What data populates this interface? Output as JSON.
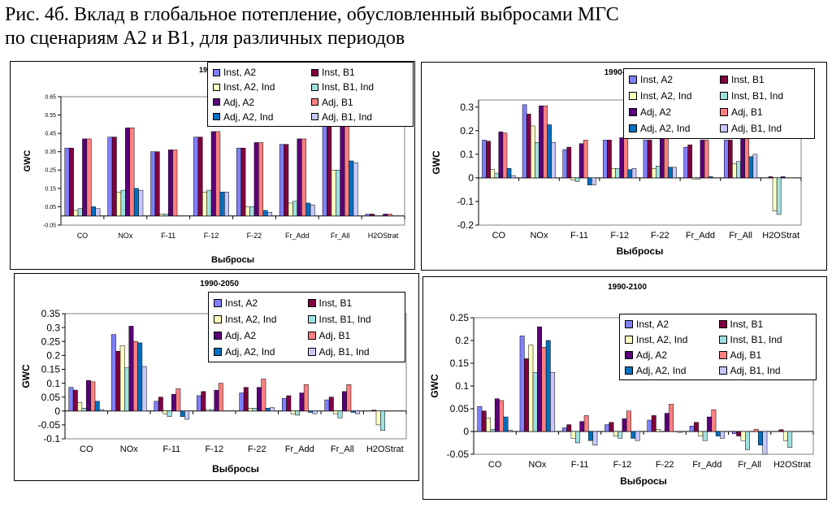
{
  "caption": {
    "line1": "Рис. 4б. Вклад в глобальное потепление, обусловленный выбросами МГС",
    "line2": "по сценариям A2 и B1, для различных периодов"
  },
  "legend_items": [
    "Inst, A2",
    "Inst, B1",
    "Inst, A2, Ind",
    "Inst, B1, Ind",
    "Adj, A2",
    "Adj, B1",
    "Adj, A2, Ind",
    "Adj, B1, Ind"
  ],
  "series_colors": [
    "#8080ff",
    "#800040",
    "#ffffc0",
    "#a0e0e0",
    "#5a007a",
    "#ff8080",
    "#0070c0",
    "#c8c8ff"
  ],
  "chart_data": [
    {
      "type": "bar",
      "title": "1990-2000",
      "xlabel": "Выбросы",
      "ylabel": "GWC",
      "ylim": [
        -0.05,
        0.65
      ],
      "yticks": [
        "-0.05",
        "0.05",
        "0.15",
        "0.25",
        "0.35",
        "0.45",
        "0.55",
        "0.65"
      ],
      "ytick_values": [
        -0.05,
        0.05,
        0.15,
        0.25,
        0.35,
        0.45,
        0.55,
        0.65
      ],
      "categories": [
        "CO",
        "NOx",
        "F-11",
        "F-12",
        "F-22",
        "Fr_Add",
        "Fr_All",
        "H2OStrat"
      ],
      "series": [
        {
          "name": "Inst, A2",
          "values": [
            0.37,
            0.43,
            0.35,
            0.43,
            0.37,
            0.39,
            0.52,
            0.01
          ]
        },
        {
          "name": "Inst, B1",
          "values": [
            0.37,
            0.43,
            0.35,
            0.43,
            0.37,
            0.39,
            0.52,
            0.01
          ]
        },
        {
          "name": "Inst, A2, Ind",
          "values": [
            0.03,
            0.13,
            0.01,
            0.13,
            0.05,
            0.07,
            0.25,
            0.0
          ]
        },
        {
          "name": "Inst, B1, Ind",
          "values": [
            0.04,
            0.14,
            0.01,
            0.14,
            0.05,
            0.08,
            0.25,
            0.0
          ]
        },
        {
          "name": "Adj, A2",
          "values": [
            0.42,
            0.48,
            0.36,
            0.46,
            0.4,
            0.42,
            0.55,
            0.01
          ]
        },
        {
          "name": "Adj, B1",
          "values": [
            0.42,
            0.48,
            0.36,
            0.46,
            0.4,
            0.42,
            0.55,
            0.01
          ]
        },
        {
          "name": "Adj, A2, Ind",
          "values": [
            0.05,
            0.15,
            0.0,
            0.13,
            0.03,
            0.07,
            0.3,
            0.0
          ]
        },
        {
          "name": "Adj, B1, Ind",
          "values": [
            0.04,
            0.14,
            0.0,
            0.13,
            0.02,
            0.06,
            0.29,
            0.0
          ]
        }
      ]
    },
    {
      "type": "bar",
      "title": "1990-2020",
      "xlabel": "Выбросы",
      "ylabel": "GWC",
      "ylim": [
        -0.2,
        0.33
      ],
      "yticks": [
        "-0.2",
        "-0.1",
        "0",
        "0.1",
        "0.2",
        "0.3"
      ],
      "ytick_values": [
        -0.2,
        -0.1,
        0,
        0.1,
        0.2,
        0.3
      ],
      "categories": [
        "CO",
        "NOx",
        "F-11",
        "F-12",
        "F-22",
        "Fr_Add",
        "Fr_All",
        "H2OStrat"
      ],
      "series": [
        {
          "name": "Inst, A2",
          "values": [
            0.16,
            0.31,
            0.12,
            0.16,
            0.16,
            0.13,
            0.16,
            0.0
          ]
        },
        {
          "name": "Inst, B1",
          "values": [
            0.155,
            0.27,
            0.13,
            0.16,
            0.16,
            0.14,
            0.16,
            0.005
          ]
        },
        {
          "name": "Inst, A2, Ind",
          "values": [
            0.035,
            0.22,
            -0.01,
            0.04,
            0.04,
            -0.005,
            0.06,
            -0.14
          ]
        },
        {
          "name": "Inst, B1, Ind",
          "values": [
            0.02,
            0.15,
            -0.015,
            0.04,
            0.05,
            -0.005,
            0.07,
            -0.155
          ]
        },
        {
          "name": "Adj, A2",
          "values": [
            0.195,
            0.305,
            0.145,
            0.17,
            0.17,
            0.16,
            0.17,
            0.005
          ]
        },
        {
          "name": "Adj, B1",
          "values": [
            0.19,
            0.305,
            0.16,
            0.17,
            0.17,
            0.16,
            0.17,
            0.0
          ]
        },
        {
          "name": "Adj, A2, Ind",
          "values": [
            0.04,
            0.225,
            -0.03,
            0.035,
            0.045,
            0.005,
            0.09,
            0.0
          ]
        },
        {
          "name": "Adj, B1, Ind",
          "values": [
            0.01,
            0.15,
            -0.03,
            0.04,
            0.045,
            0.0,
            0.1,
            0.0
          ]
        }
      ]
    },
    {
      "type": "bar",
      "title": "1990-2050",
      "xlabel": "Выбросы",
      "ylabel": "GWC",
      "ylim": [
        -0.1,
        0.35
      ],
      "yticks": [
        "-0.1",
        "-0.05",
        "0",
        "0.05",
        "0.1",
        "0.15",
        "0.2",
        "0.25",
        "0.3",
        "0.35"
      ],
      "ytick_values": [
        -0.1,
        -0.05,
        0,
        0.05,
        0.1,
        0.15,
        0.2,
        0.25,
        0.3,
        0.35
      ],
      "categories": [
        "CO",
        "NOx",
        "F-11",
        "F-12",
        "F-22",
        "Fr_Add",
        "Fr_All",
        "H2OStrat"
      ],
      "series": [
        {
          "name": "Inst, A2",
          "values": [
            0.085,
            0.275,
            0.035,
            0.055,
            0.065,
            0.045,
            0.04,
            0.0
          ]
        },
        {
          "name": "Inst, B1",
          "values": [
            0.075,
            0.215,
            0.05,
            0.07,
            0.085,
            0.055,
            0.05,
            0.003
          ]
        },
        {
          "name": "Inst, A2, Ind",
          "values": [
            0.03,
            0.235,
            -0.01,
            0.005,
            0.01,
            -0.01,
            -0.01,
            -0.05
          ]
        },
        {
          "name": "Inst, B1, Ind",
          "values": [
            0.01,
            0.155,
            -0.02,
            0.005,
            0.01,
            -0.015,
            -0.025,
            -0.07
          ]
        },
        {
          "name": "Adj, A2",
          "values": [
            0.11,
            0.305,
            0.06,
            0.075,
            0.085,
            0.065,
            0.07,
            0.0
          ]
        },
        {
          "name": "Adj, B1",
          "values": [
            0.105,
            0.25,
            0.08,
            0.1,
            0.115,
            0.095,
            0.095,
            0.0
          ]
        },
        {
          "name": "Adj, A2, Ind",
          "values": [
            0.035,
            0.245,
            -0.02,
            0.0,
            0.01,
            -0.005,
            -0.005,
            0.0
          ]
        },
        {
          "name": "Adj, B1, Ind",
          "values": [
            0.005,
            0.16,
            -0.03,
            0.0,
            0.012,
            -0.01,
            -0.01,
            0.0
          ]
        }
      ]
    },
    {
      "type": "bar",
      "title": "1990-2100",
      "xlabel": "Выбросы",
      "ylabel": "GWC",
      "ylim": [
        -0.05,
        0.25
      ],
      "yticks": [
        "-0.05",
        "0",
        "0.05",
        "0.1",
        "0.15",
        "0.2",
        "0.25"
      ],
      "ytick_values": [
        -0.05,
        0,
        0.05,
        0.1,
        0.15,
        0.2,
        0.25
      ],
      "categories": [
        "CO",
        "NOx",
        "F-11",
        "F-12",
        "F-22",
        "Fr_Add",
        "Fr_All",
        "H2OStrat"
      ],
      "series": [
        {
          "name": "Inst, A2",
          "values": [
            0.055,
            0.21,
            0.008,
            0.015,
            0.025,
            0.012,
            -0.005,
            0.0
          ]
        },
        {
          "name": "Inst, B1",
          "values": [
            0.045,
            0.16,
            0.015,
            0.02,
            0.035,
            0.02,
            -0.01,
            0.004
          ]
        },
        {
          "name": "Inst, A2, Ind",
          "values": [
            0.03,
            0.19,
            -0.015,
            -0.01,
            0.005,
            -0.01,
            -0.02,
            -0.02
          ]
        },
        {
          "name": "Inst, B1, Ind",
          "values": [
            0.005,
            0.13,
            -0.025,
            -0.015,
            0.0,
            -0.02,
            -0.04,
            -0.035
          ]
        },
        {
          "name": "Adj, A2",
          "values": [
            0.072,
            0.23,
            0.022,
            0.028,
            0.04,
            0.032,
            0.0,
            0.0
          ]
        },
        {
          "name": "Adj, B1",
          "values": [
            0.068,
            0.185,
            0.035,
            0.045,
            0.06,
            0.048,
            0.005,
            0.0
          ]
        },
        {
          "name": "Adj, A2, Ind",
          "values": [
            0.032,
            0.2,
            -0.02,
            -0.015,
            0.0,
            -0.01,
            -0.03,
            0.0
          ]
        },
        {
          "name": "Adj, B1, Ind",
          "values": [
            0.003,
            0.13,
            -0.03,
            -0.02,
            -0.002,
            -0.015,
            -0.05,
            0.0
          ]
        }
      ]
    }
  ]
}
